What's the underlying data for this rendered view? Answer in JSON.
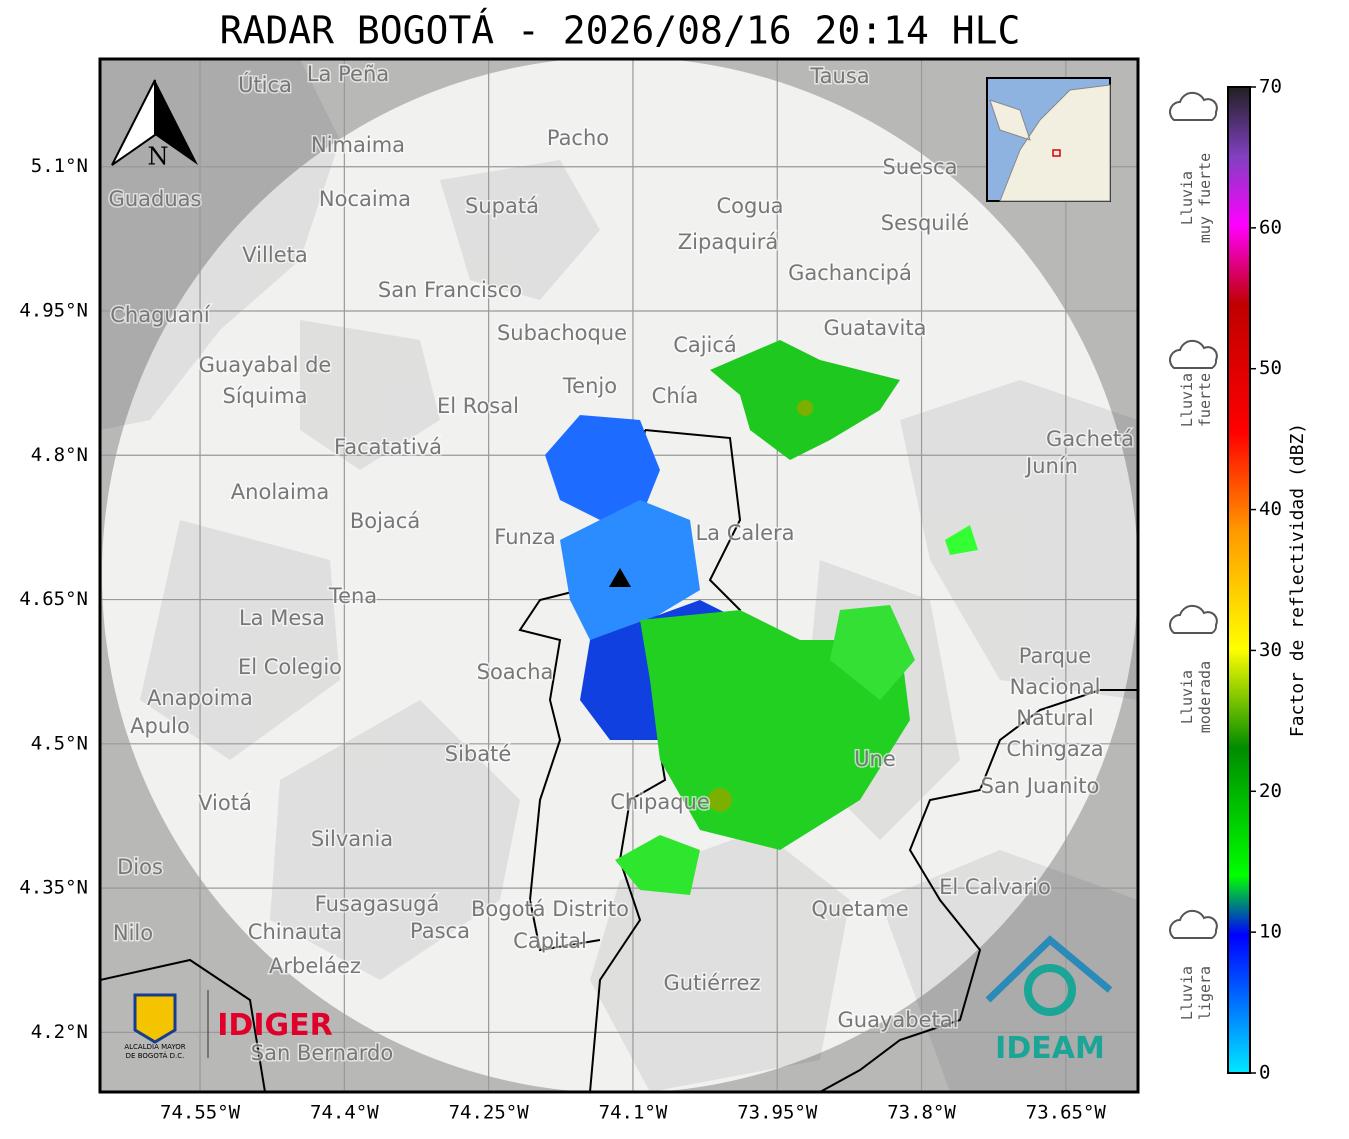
{
  "title": "RADAR BOGOTÁ - 2026/08/16 20:14 HLC",
  "map": {
    "lat_lim": [
      4.138,
      5.212
    ],
    "lon_lim": [
      -74.654,
      -73.575
    ],
    "lat_ticks": [
      {
        "value": 5.1,
        "label": "5.1°N"
      },
      {
        "value": 4.95,
        "label": "4.95°N"
      },
      {
        "value": 4.8,
        "label": "4.8°N"
      },
      {
        "value": 4.65,
        "label": "4.65°N"
      },
      {
        "value": 4.5,
        "label": "4.5°N"
      },
      {
        "value": 4.35,
        "label": "4.35°N"
      },
      {
        "value": 4.2,
        "label": "4.2°N"
      }
    ],
    "lon_ticks": [
      {
        "value": -74.55,
        "label": "74.55°W"
      },
      {
        "value": -74.4,
        "label": "74.4°W"
      },
      {
        "value": -74.25,
        "label": "74.25°W"
      },
      {
        "value": -74.1,
        "label": "74.1°W"
      },
      {
        "value": -73.95,
        "label": "73.95°W"
      },
      {
        "value": -73.8,
        "label": "73.8°W"
      },
      {
        "value": -73.65,
        "label": "73.65°W"
      }
    ],
    "places": [
      "La Peña",
      "Útica",
      "Tausa",
      "Pacho",
      "Nimaima",
      "Nocaima",
      "Supatá",
      "Guaduas",
      "Suesca",
      "Cogua",
      "Sesquilé",
      "Zipaquirá",
      "Villeta",
      "Gachancipá",
      "San Francisco",
      "Chaguaní",
      "Guatavita",
      "Subachoque",
      "Cajicá",
      "Guayabal de",
      "Síquima",
      "Tenjo",
      "Chía",
      "El Rosal",
      "Facatativá",
      "Gachetá",
      "Junín",
      "Anolaima",
      "Bojacá",
      "Funza",
      "La Calera",
      "Tena",
      "La Mesa",
      "El Colegio",
      "Soacha",
      "Parque",
      "Nacional",
      "Natural",
      "Chingaza",
      "Anapoima",
      "Apulo",
      "Sibaté",
      "San Juanito",
      "Viotá",
      "Silvania",
      "Chipaque",
      "Une",
      "El Calvario",
      "Fusagasugá",
      "Bogotá Distrito",
      "Capital",
      "Quetame",
      "Chinauta",
      "Pasca",
      "Nilo",
      "Dios",
      "Arbeláez",
      "Gutiérrez",
      "Guayabetal",
      "San Bernardo"
    ],
    "north": "N"
  },
  "colorbar": {
    "label": "Factor de reflectividad (dBZ)",
    "lim": [
      0,
      70
    ],
    "ticks": [
      0,
      10,
      20,
      30,
      40,
      50,
      60,
      70
    ]
  },
  "rain_levels": [
    {
      "line1": "Lluvia",
      "line2": "muy fuerte"
    },
    {
      "line1": "Lluvia",
      "line2": "fuerte"
    },
    {
      "line1": "Lluvia",
      "line2": "moderada"
    },
    {
      "line1": "Lluvia",
      "line2": "ligera"
    }
  ],
  "logos": {
    "alcaldia": "ALCALDÍA MAYOR",
    "alcaldia2": "DE BOGOTÁ D.C.",
    "idiger": "IDIGER",
    "ideam": "IDEAM"
  }
}
